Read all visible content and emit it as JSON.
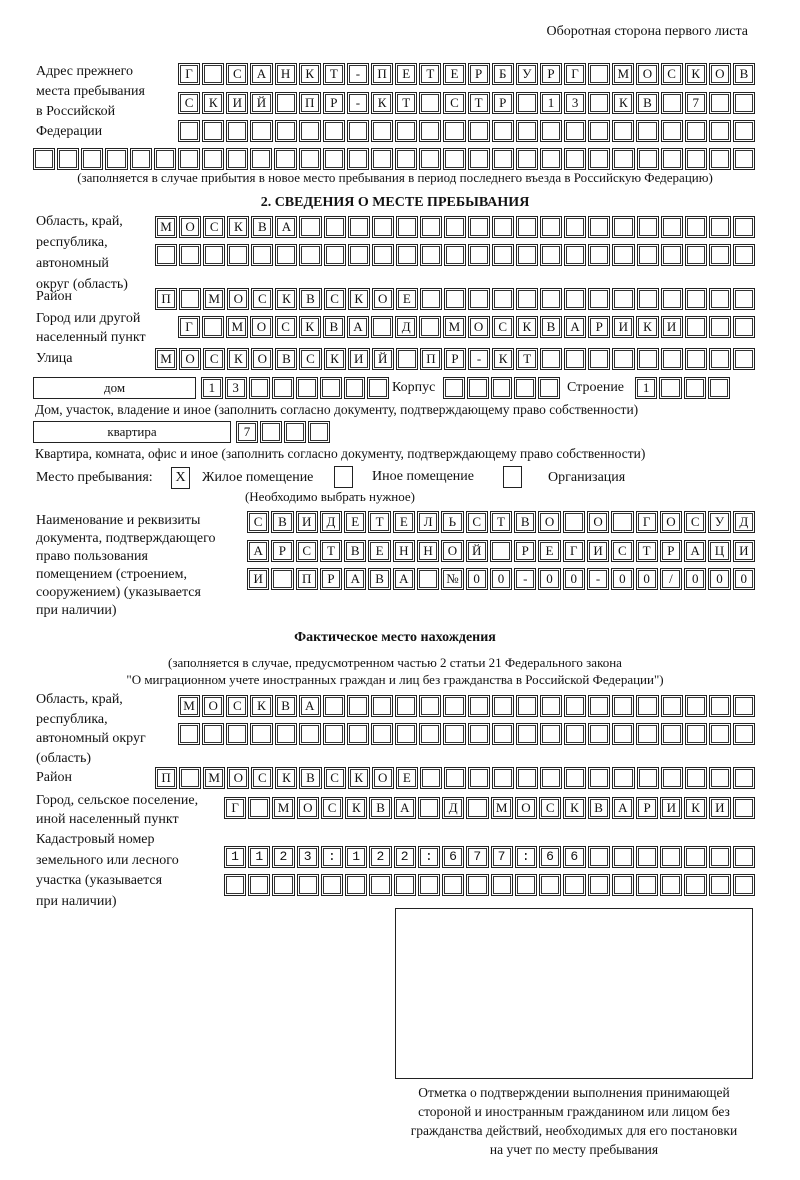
{
  "header": "Оборотная сторона первого листа",
  "prev_address": {
    "label": [
      "Адрес прежнего",
      "места пребывания",
      "в Российской",
      "Федерации"
    ],
    "rows": [
      "Г САНКТ-ПЕТЕРБУРГ МОСКОВ",
      "СКИЙ ПР-КТ СТР 13 КВ 7  ",
      "                        ",
      "                              "
    ],
    "note": "(заполняется в случае прибытия в новое место пребывания в период последнего въезда в Российскую Федерацию)"
  },
  "section2": {
    "title": "2. СВЕДЕНИЯ О МЕСТЕ ПРЕБЫВАНИЯ",
    "region_label": [
      "Область, край,",
      "республика,",
      "автономный",
      "округ (область)"
    ],
    "region_rows": [
      "МОСКВА                   ",
      "                         "
    ],
    "district_label": "Район",
    "district": "П МОСКВСКОЕ              ",
    "city_label": [
      "Город или другой",
      "населенный пункт"
    ],
    "city": "Г МОСКВА Д МОСКВАРИКИ   ",
    "street_label": "Улица",
    "street": "МОСКОВСКИЙ ПР-КТ         ",
    "house_type": "дом",
    "house": "13      ",
    "korpus_label": "Корпус",
    "korpus": "     ",
    "building_label": "Строение",
    "building": "1   ",
    "house_note": "Дом, участок, владение и иное (заполнить согласно документу, подтверждающему право собственности)",
    "apt_type": "квартира",
    "apt": "7   ",
    "apt_note": "Квартира, комната, офис и иное (заполнить согласно документу, подтверждающему право собственности)",
    "stay_label": "Место пребывания:",
    "options": [
      {
        "mark": "X",
        "label": "Жилое помещение"
      },
      {
        "mark": "",
        "label": "Иное помещение"
      },
      {
        "mark": "",
        "label": "Организация"
      }
    ],
    "options_note": "(Необходимо выбрать нужное)",
    "doc_label": [
      "Наименование и реквизиты",
      "документа, подтверждающего",
      "право пользования",
      "помещением (строением,",
      "сооружением) (указывается",
      "при наличии)"
    ],
    "doc_rows": [
      "СВИДЕТЕЛЬСТВО О ГОСУД",
      "АРСТВЕННОЙ РЕГИСТРАЦИ",
      "И ПРАВА №00-00-00/000"
    ]
  },
  "actual": {
    "title": "Фактическое место нахождения",
    "note": [
      "(заполняется в случае, предусмотренном частью 2 статьи 21 Федерального закона",
      "\"О миграционном учете иностранных граждан и лиц без гражданства в Российской Федерации\")"
    ],
    "region_label": [
      "Область, край,",
      "республика,",
      "автономный округ",
      "(область)"
    ],
    "region_rows": [
      "МОСКВА                  ",
      "                        "
    ],
    "district_label": "Район",
    "district": "П МОСКВСКОЕ              ",
    "city_label": [
      "Город, сельское поселение,",
      "иной населенный пункт"
    ],
    "city": "Г МОСКВА Д МОСКВАРИКИ ",
    "cadastral_label": [
      "Кадастровый номер",
      "земельного или лесного",
      "участка (указывается",
      "при наличии)"
    ],
    "cadastral_rows": [
      "1123:122:677:66       ",
      "                      "
    ]
  },
  "stamp_caption": [
    "Отметка о подтверждении выполнения принимающей",
    "стороной и иностранным гражданином или лицом без",
    "гражданства действий, необходимых для его постановки",
    "на учет по месту пребывания"
  ]
}
